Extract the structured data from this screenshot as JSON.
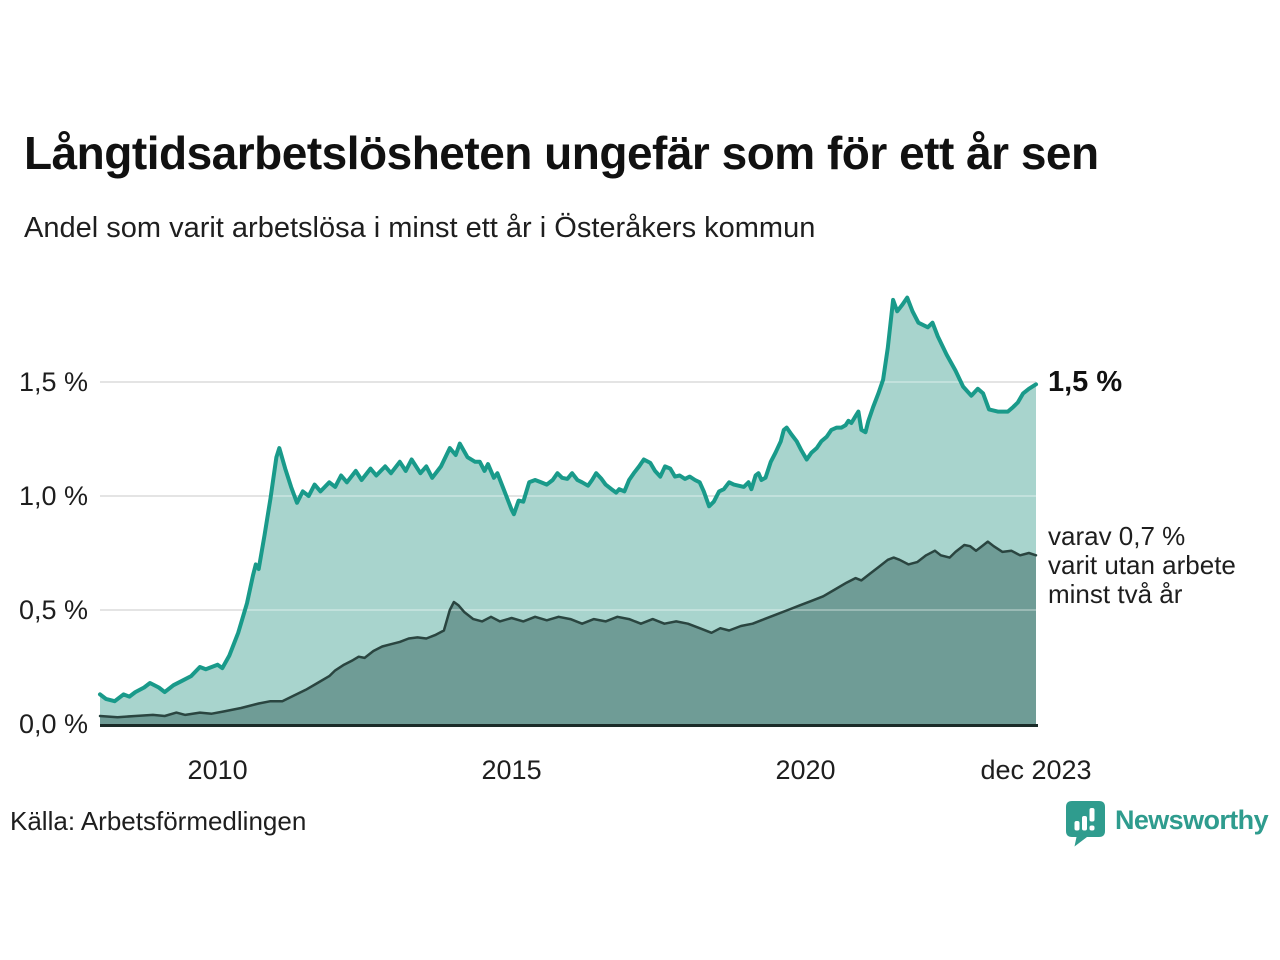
{
  "header": {
    "title": "Långtidsarbetslösheten ungefär som för ett år sen",
    "subtitle": "Andel som varit arbetslösa i minst ett år i Österåkers kommun"
  },
  "annotations": {
    "end_label": "1,5 %",
    "secondary_lines": [
      "varav 0,7 %",
      "varit utan arbete",
      "minst två år"
    ]
  },
  "footer": {
    "source": "Källa: Arbetsförmedlingen",
    "brand": "Newsworthy",
    "brand_color": "#2f9c8e"
  },
  "chart_data": {
    "type": "area",
    "title": "Långtidsarbetslösheten ungefär som för ett år sen",
    "subtitle": "Andel som varit arbetslösa i minst ett år i Österåkers kommun",
    "xlabel": "",
    "ylabel": "",
    "unit": "%",
    "grid": "horizontal",
    "legend_position": "right-annotations",
    "gridline_color": "#d8d8d8",
    "baseline_color": "#1b2b28",
    "text_color": "#1e1e1e",
    "x_axis": {
      "min": 2008.0,
      "max": 2023.92,
      "ticks": [
        {
          "value": 2010,
          "label": "2010"
        },
        {
          "value": 2015,
          "label": "2015"
        },
        {
          "value": 2020,
          "label": "2020"
        },
        {
          "value": 2023.92,
          "label": "dec 2023"
        }
      ]
    },
    "y_axis": {
      "min": 0,
      "max": 2.0,
      "ticks": [
        {
          "value": 0,
          "label": "0,0 %"
        },
        {
          "value": 0.5,
          "label": "0,5 %"
        },
        {
          "value": 1.0,
          "label": "1,0 %"
        },
        {
          "value": 1.5,
          "label": "1,5 %"
        }
      ]
    },
    "series": [
      {
        "id": "minst-ett-ar",
        "name": "Andel arbetslösa minst ett år",
        "latest_value": "1,5 %",
        "line_color": "#199a8a",
        "fill_color": "#a8d4cd",
        "line_width": 4,
        "points": [
          [
            2008.0,
            0.13
          ],
          [
            2008.1,
            0.11
          ],
          [
            2008.25,
            0.1
          ],
          [
            2008.4,
            0.13
          ],
          [
            2008.5,
            0.12
          ],
          [
            2008.6,
            0.14
          ],
          [
            2008.75,
            0.16
          ],
          [
            2008.85,
            0.18
          ],
          [
            2009.0,
            0.16
          ],
          [
            2009.1,
            0.14
          ],
          [
            2009.25,
            0.17
          ],
          [
            2009.4,
            0.19
          ],
          [
            2009.55,
            0.21
          ],
          [
            2009.7,
            0.25
          ],
          [
            2009.8,
            0.24
          ],
          [
            2009.9,
            0.25
          ],
          [
            2010.0,
            0.26
          ],
          [
            2010.08,
            0.245
          ],
          [
            2010.2,
            0.3
          ],
          [
            2010.35,
            0.4
          ],
          [
            2010.5,
            0.53
          ],
          [
            2010.6,
            0.65
          ],
          [
            2010.65,
            0.7
          ],
          [
            2010.7,
            0.68
          ],
          [
            2010.8,
            0.83
          ],
          [
            2010.9,
            0.99
          ],
          [
            2011.0,
            1.17
          ],
          [
            2011.05,
            1.21
          ],
          [
            2011.15,
            1.12
          ],
          [
            2011.25,
            1.04
          ],
          [
            2011.35,
            0.97
          ],
          [
            2011.45,
            1.02
          ],
          [
            2011.55,
            1.0
          ],
          [
            2011.65,
            1.05
          ],
          [
            2011.75,
            1.02
          ],
          [
            2011.9,
            1.06
          ],
          [
            2012.0,
            1.04
          ],
          [
            2012.1,
            1.09
          ],
          [
            2012.2,
            1.06
          ],
          [
            2012.35,
            1.11
          ],
          [
            2012.45,
            1.07
          ],
          [
            2012.6,
            1.12
          ],
          [
            2012.7,
            1.09
          ],
          [
            2012.85,
            1.13
          ],
          [
            2012.95,
            1.1
          ],
          [
            2013.1,
            1.15
          ],
          [
            2013.2,
            1.11
          ],
          [
            2013.3,
            1.16
          ],
          [
            2013.45,
            1.1
          ],
          [
            2013.55,
            1.13
          ],
          [
            2013.65,
            1.08
          ],
          [
            2013.8,
            1.13
          ],
          [
            2013.95,
            1.21
          ],
          [
            2014.05,
            1.18
          ],
          [
            2014.12,
            1.23
          ],
          [
            2014.25,
            1.17
          ],
          [
            2014.38,
            1.15
          ],
          [
            2014.46,
            1.15
          ],
          [
            2014.54,
            1.11
          ],
          [
            2014.6,
            1.14
          ],
          [
            2014.7,
            1.08
          ],
          [
            2014.76,
            1.1
          ],
          [
            2014.88,
            1.02
          ],
          [
            2015.0,
            0.94
          ],
          [
            2015.04,
            0.92
          ],
          [
            2015.12,
            0.98
          ],
          [
            2015.2,
            0.975
          ],
          [
            2015.3,
            1.06
          ],
          [
            2015.4,
            1.07
          ],
          [
            2015.5,
            1.06
          ],
          [
            2015.6,
            1.05
          ],
          [
            2015.7,
            1.07
          ],
          [
            2015.78,
            1.1
          ],
          [
            2015.86,
            1.08
          ],
          [
            2015.95,
            1.075
          ],
          [
            2016.03,
            1.1
          ],
          [
            2016.12,
            1.07
          ],
          [
            2016.2,
            1.06
          ],
          [
            2016.3,
            1.045
          ],
          [
            2016.37,
            1.07
          ],
          [
            2016.44,
            1.1
          ],
          [
            2016.53,
            1.075
          ],
          [
            2016.6,
            1.05
          ],
          [
            2016.7,
            1.03
          ],
          [
            2016.78,
            1.015
          ],
          [
            2016.83,
            1.03
          ],
          [
            2016.92,
            1.02
          ],
          [
            2017.0,
            1.07
          ],
          [
            2017.08,
            1.1
          ],
          [
            2017.17,
            1.13
          ],
          [
            2017.25,
            1.16
          ],
          [
            2017.36,
            1.145
          ],
          [
            2017.44,
            1.11
          ],
          [
            2017.53,
            1.085
          ],
          [
            2017.61,
            1.13
          ],
          [
            2017.7,
            1.12
          ],
          [
            2017.78,
            1.085
          ],
          [
            2017.86,
            1.09
          ],
          [
            2017.95,
            1.075
          ],
          [
            2018.03,
            1.085
          ],
          [
            2018.12,
            1.07
          ],
          [
            2018.2,
            1.06
          ],
          [
            2018.27,
            1.02
          ],
          [
            2018.36,
            0.955
          ],
          [
            2018.44,
            0.975
          ],
          [
            2018.53,
            1.02
          ],
          [
            2018.61,
            1.03
          ],
          [
            2018.7,
            1.06
          ],
          [
            2018.78,
            1.05
          ],
          [
            2018.95,
            1.04
          ],
          [
            2019.03,
            1.06
          ],
          [
            2019.08,
            1.03
          ],
          [
            2019.15,
            1.09
          ],
          [
            2019.2,
            1.1
          ],
          [
            2019.25,
            1.07
          ],
          [
            2019.32,
            1.08
          ],
          [
            2019.41,
            1.15
          ],
          [
            2019.49,
            1.19
          ],
          [
            2019.58,
            1.24
          ],
          [
            2019.63,
            1.29
          ],
          [
            2019.68,
            1.3
          ],
          [
            2019.76,
            1.27
          ],
          [
            2019.85,
            1.24
          ],
          [
            2019.93,
            1.2
          ],
          [
            2020.02,
            1.16
          ],
          [
            2020.1,
            1.19
          ],
          [
            2020.19,
            1.21
          ],
          [
            2020.27,
            1.24
          ],
          [
            2020.36,
            1.26
          ],
          [
            2020.44,
            1.29
          ],
          [
            2020.53,
            1.3
          ],
          [
            2020.61,
            1.3
          ],
          [
            2020.68,
            1.31
          ],
          [
            2020.73,
            1.33
          ],
          [
            2020.78,
            1.32
          ],
          [
            2020.85,
            1.35
          ],
          [
            2020.9,
            1.37
          ],
          [
            2020.95,
            1.29
          ],
          [
            2021.02,
            1.28
          ],
          [
            2021.07,
            1.33
          ],
          [
            2021.15,
            1.39
          ],
          [
            2021.24,
            1.45
          ],
          [
            2021.32,
            1.51
          ],
          [
            2021.4,
            1.65
          ],
          [
            2021.49,
            1.86
          ],
          [
            2021.56,
            1.81
          ],
          [
            2021.65,
            1.84
          ],
          [
            2021.73,
            1.87
          ],
          [
            2021.82,
            1.81
          ],
          [
            2021.92,
            1.76
          ],
          [
            2022.08,
            1.74
          ],
          [
            2022.16,
            1.76
          ],
          [
            2022.25,
            1.7
          ],
          [
            2022.4,
            1.62
          ],
          [
            2022.55,
            1.55
          ],
          [
            2022.68,
            1.48
          ],
          [
            2022.82,
            1.44
          ],
          [
            2022.93,
            1.47
          ],
          [
            2023.02,
            1.45
          ],
          [
            2023.12,
            1.38
          ],
          [
            2023.27,
            1.37
          ],
          [
            2023.44,
            1.37
          ],
          [
            2023.53,
            1.39
          ],
          [
            2023.61,
            1.41
          ],
          [
            2023.7,
            1.45
          ],
          [
            2023.8,
            1.47
          ],
          [
            2023.92,
            1.49
          ]
        ]
      },
      {
        "id": "minst-tva-ar",
        "name": "varav utan arbete minst två år",
        "latest_value": "0,7 %",
        "line_color": "#2a4540",
        "fill_color": "#6f9c96",
        "line_width": 2.5,
        "points": [
          [
            2008.0,
            0.035
          ],
          [
            2008.3,
            0.03
          ],
          [
            2008.6,
            0.035
          ],
          [
            2008.9,
            0.04
          ],
          [
            2009.1,
            0.035
          ],
          [
            2009.3,
            0.05
          ],
          [
            2009.45,
            0.04
          ],
          [
            2009.7,
            0.05
          ],
          [
            2009.9,
            0.045
          ],
          [
            2010.1,
            0.055
          ],
          [
            2010.4,
            0.07
          ],
          [
            2010.7,
            0.09
          ],
          [
            2010.9,
            0.1
          ],
          [
            2011.1,
            0.1
          ],
          [
            2011.3,
            0.125
          ],
          [
            2011.5,
            0.15
          ],
          [
            2011.7,
            0.18
          ],
          [
            2011.9,
            0.21
          ],
          [
            2012.0,
            0.235
          ],
          [
            2012.15,
            0.26
          ],
          [
            2012.3,
            0.28
          ],
          [
            2012.4,
            0.295
          ],
          [
            2012.5,
            0.29
          ],
          [
            2012.65,
            0.32
          ],
          [
            2012.8,
            0.34
          ],
          [
            2012.95,
            0.35
          ],
          [
            2013.1,
            0.36
          ],
          [
            2013.25,
            0.375
          ],
          [
            2013.4,
            0.38
          ],
          [
            2013.55,
            0.375
          ],
          [
            2013.7,
            0.39
          ],
          [
            2013.85,
            0.41
          ],
          [
            2013.95,
            0.5
          ],
          [
            2014.02,
            0.535
          ],
          [
            2014.1,
            0.52
          ],
          [
            2014.2,
            0.49
          ],
          [
            2014.35,
            0.46
          ],
          [
            2014.5,
            0.45
          ],
          [
            2014.65,
            0.47
          ],
          [
            2014.8,
            0.45
          ],
          [
            2015.0,
            0.465
          ],
          [
            2015.2,
            0.45
          ],
          [
            2015.4,
            0.47
          ],
          [
            2015.6,
            0.455
          ],
          [
            2015.8,
            0.47
          ],
          [
            2016.0,
            0.46
          ],
          [
            2016.2,
            0.44
          ],
          [
            2016.4,
            0.46
          ],
          [
            2016.6,
            0.45
          ],
          [
            2016.8,
            0.47
          ],
          [
            2017.0,
            0.46
          ],
          [
            2017.2,
            0.44
          ],
          [
            2017.4,
            0.46
          ],
          [
            2017.6,
            0.44
          ],
          [
            2017.8,
            0.45
          ],
          [
            2018.0,
            0.44
          ],
          [
            2018.2,
            0.42
          ],
          [
            2018.4,
            0.4
          ],
          [
            2018.55,
            0.42
          ],
          [
            2018.7,
            0.41
          ],
          [
            2018.9,
            0.43
          ],
          [
            2019.1,
            0.44
          ],
          [
            2019.3,
            0.46
          ],
          [
            2019.5,
            0.48
          ],
          [
            2019.7,
            0.5
          ],
          [
            2019.9,
            0.52
          ],
          [
            2020.1,
            0.54
          ],
          [
            2020.3,
            0.56
          ],
          [
            2020.5,
            0.59
          ],
          [
            2020.7,
            0.62
          ],
          [
            2020.85,
            0.64
          ],
          [
            2020.95,
            0.63
          ],
          [
            2021.1,
            0.66
          ],
          [
            2021.25,
            0.69
          ],
          [
            2021.4,
            0.72
          ],
          [
            2021.5,
            0.73
          ],
          [
            2021.6,
            0.72
          ],
          [
            2021.75,
            0.7
          ],
          [
            2021.9,
            0.71
          ],
          [
            2022.05,
            0.74
          ],
          [
            2022.2,
            0.76
          ],
          [
            2022.3,
            0.74
          ],
          [
            2022.45,
            0.73
          ],
          [
            2022.55,
            0.755
          ],
          [
            2022.7,
            0.785
          ],
          [
            2022.8,
            0.78
          ],
          [
            2022.9,
            0.76
          ],
          [
            2023.0,
            0.78
          ],
          [
            2023.1,
            0.8
          ],
          [
            2023.2,
            0.78
          ],
          [
            2023.35,
            0.755
          ],
          [
            2023.5,
            0.76
          ],
          [
            2023.65,
            0.74
          ],
          [
            2023.8,
            0.75
          ],
          [
            2023.92,
            0.74
          ]
        ]
      }
    ]
  }
}
